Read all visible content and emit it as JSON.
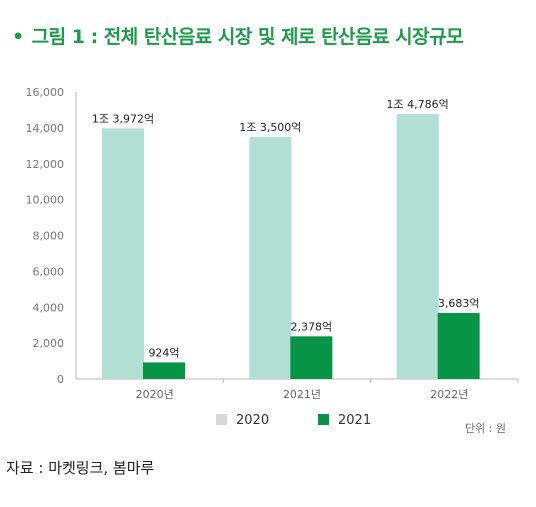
{
  "title": "그림 1 : 전체 탄산음료 시장 및 제로 탄산음료 시장규모",
  "unit_note": "단위 : 원",
  "source": "자료 : 마켓링크, 봄마루",
  "colors": {
    "title": "#1e9a4c",
    "s2020": "#b2dfd3",
    "s2021": "#079447",
    "legend2020": "#d8d8d8",
    "axis": "#bbbbbb",
    "grid": "#e6e6e6"
  },
  "chart_data": {
    "type": "bar",
    "categories": [
      "2020년",
      "2021년",
      "2022년"
    ],
    "series": [
      {
        "name": "2020",
        "values": [
          13972,
          13500,
          14786
        ],
        "labels": [
          "1조 3,972억",
          "1조 3,500억",
          "1조 4,786억"
        ]
      },
      {
        "name": "2021",
        "values": [
          924,
          2378,
          3683
        ],
        "labels": [
          "924억",
          "2,378억",
          "3,683억"
        ]
      }
    ],
    "yticks": [
      "0",
      "2,000",
      "4,000",
      "6,000",
      "8,000",
      "10,000",
      "12,000",
      "14,000",
      "16,000"
    ],
    "ylim": [
      0,
      16000
    ],
    "legend_position": "bottom",
    "grid": false
  }
}
